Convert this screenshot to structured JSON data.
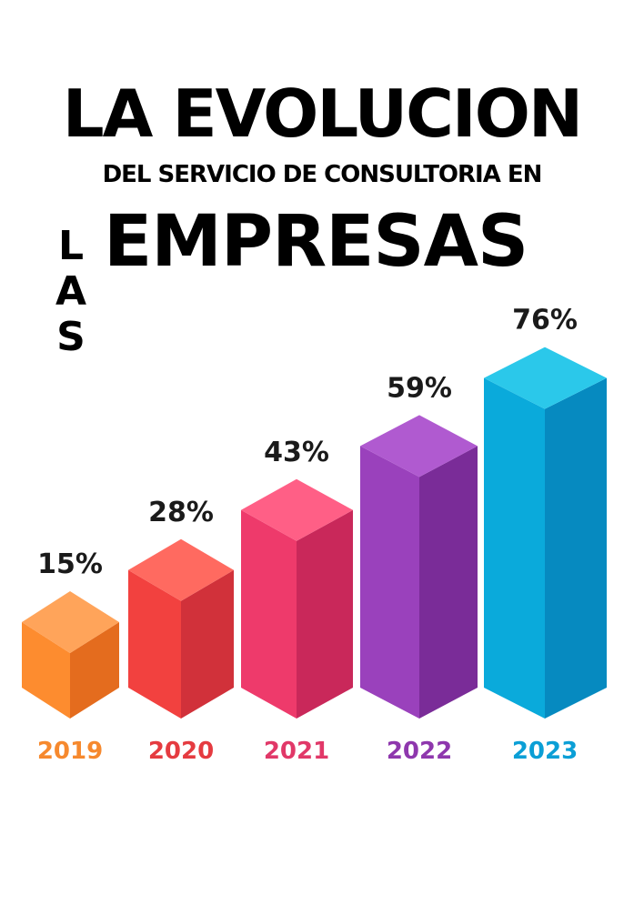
{
  "title": {
    "line1": "LA EVOLUCION",
    "line2": "DEL SERVICIO DE CONSULTORIA EN",
    "vertical_word": "LAS",
    "big_word": "EMPRESAS"
  },
  "chart_data": {
    "type": "bar",
    "categories": [
      "2019",
      "2020",
      "2021",
      "2022",
      "2023"
    ],
    "values": [
      15,
      28,
      43,
      59,
      76
    ],
    "value_labels": [
      "15%",
      "28%",
      "43%",
      "59%",
      "76%"
    ],
    "series": [
      {
        "values": [
          15,
          28,
          43,
          59,
          76
        ]
      }
    ],
    "grid": false,
    "legend": "none",
    "style": "3d isometric bars",
    "colors": {
      "2019": {
        "front": "#FD8C2F",
        "side": "#E46C1E",
        "top": "#FFA45A",
        "label": "#F6892E"
      },
      "2020": {
        "front": "#F2413F",
        "side": "#D1313A",
        "top": "#FF6A60",
        "label": "#E53B40"
      },
      "2021": {
        "front": "#EE3A6B",
        "side": "#C9285A",
        "top": "#FF5F86",
        "label": "#E13868"
      },
      "2022": {
        "front": "#9A41BC",
        "side": "#7A2C98",
        "top": "#B05AD0",
        "label": "#8E37AD"
      },
      "2023": {
        "front": "#0AAADB",
        "side": "#068AC0",
        "top": "#2BC8EA",
        "label": "#0B9FD6"
      }
    }
  }
}
